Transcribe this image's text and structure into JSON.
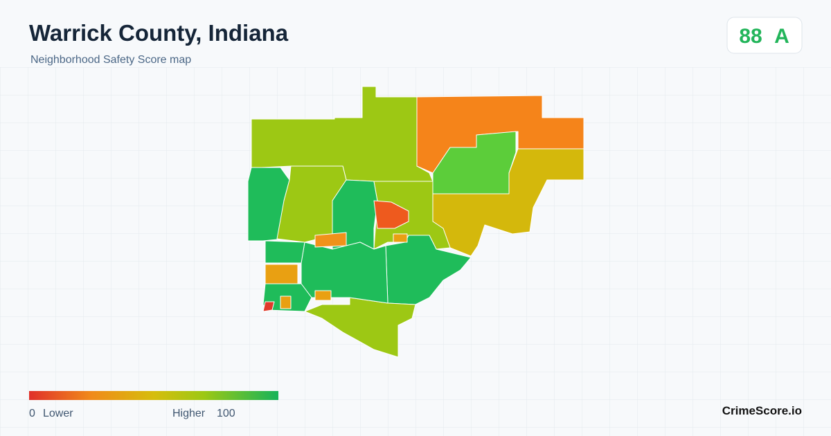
{
  "header": {
    "title": "Warrick County, Indiana",
    "subtitle": "Neighborhood Safety Score map"
  },
  "score": {
    "value": 88,
    "grade": "A"
  },
  "legend": {
    "min": 0,
    "min_label": "Lower",
    "max_label": "Higher",
    "max": 100
  },
  "brand": "CrimeScore.io"
}
